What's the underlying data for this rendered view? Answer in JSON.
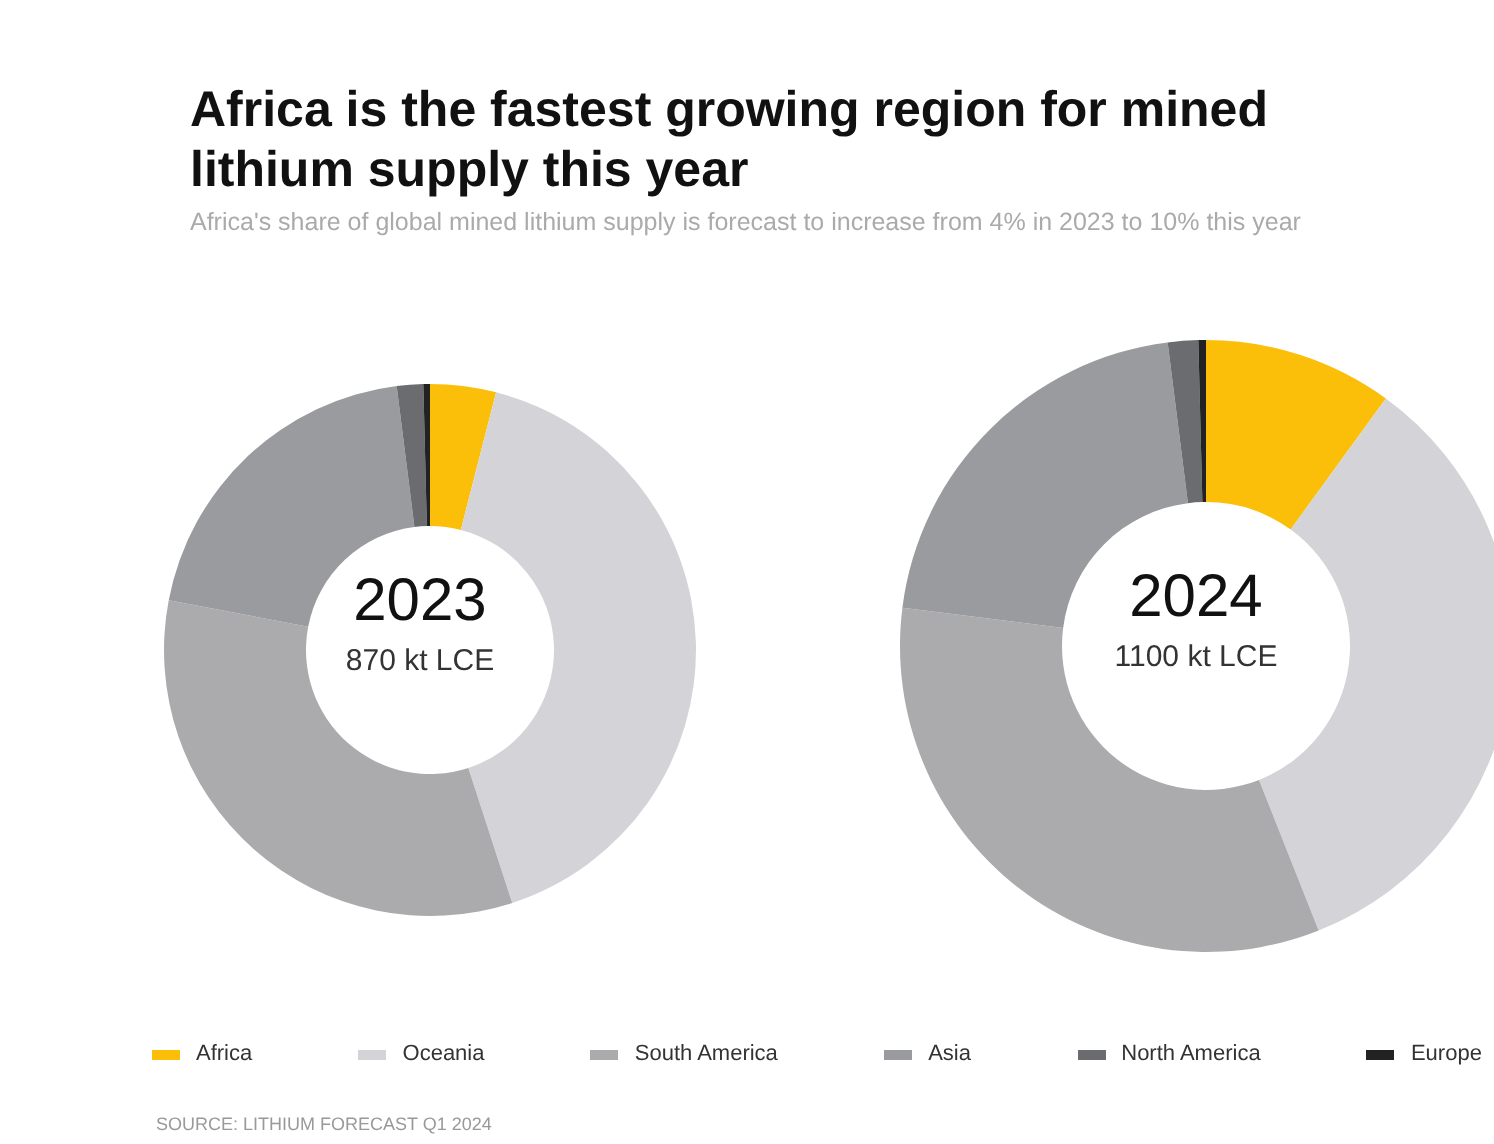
{
  "chart_data": [
    {
      "type": "donut",
      "title": "Africa is the fastest growing region for mined lithium supply this year",
      "subtitle": "Africa's share of global mined lithium supply is forecast to increase from 4% in 2023 to 10% this year",
      "categories": [
        "Africa",
        "Oceania",
        "South America",
        "Asia",
        "North America",
        "Europe"
      ],
      "values": [
        4,
        41,
        33,
        20,
        1.6,
        0.4
      ],
      "colors": [
        "#fbbf0a",
        "#d4d4d8",
        "#ababad",
        "#9a9b9e",
        "#6b6c70",
        "#222222"
      ],
      "legend": "bottom",
      "annotations": [
        "2023",
        "870 kt LCE",
        "SOURCE: LITHIUM FORECAST Q1 2024"
      ]
    },
    {
      "type": "donut",
      "categories": [
        null,
        null,
        null,
        null,
        null,
        null
      ],
      "values": [
        10,
        34,
        33,
        21,
        1.6,
        0.4
      ],
      "colors": [
        "#fbbf0a",
        "#d4d4d8",
        "#ababad",
        "#9a9b9e",
        "#6b6c70",
        "#222222"
      ],
      "annotations": [
        "2024",
        "1100 kt LCE"
      ]
    }
  ]
}
